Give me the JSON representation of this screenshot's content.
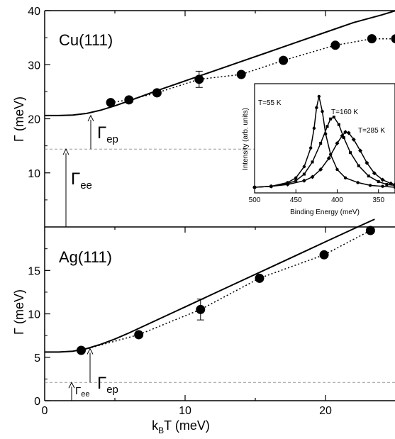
{
  "chart_data": [
    {
      "type": "scatter",
      "panel": "Cu(111)",
      "title": "Cu(111)",
      "ylabel": "Γ (meV)",
      "xlim": [
        0,
        25
      ],
      "ylim": [
        0,
        40
      ],
      "yticks": [
        10,
        20,
        30,
        40
      ],
      "measured": {
        "x": [
          4.7,
          6.0,
          8.0,
          11.0,
          14.0,
          17.0,
          20.7,
          23.3,
          25
        ],
        "y": [
          23.0,
          23.5,
          24.8,
          27.3,
          28.2,
          30.8,
          33.6,
          34.8,
          34.8
        ],
        "err": [
          0,
          0,
          0,
          1.5,
          0,
          0,
          0,
          0,
          0
        ]
      },
      "model": {
        "x": [
          0,
          1,
          2,
          3,
          4,
          5,
          6,
          8,
          10,
          12,
          14,
          16,
          18,
          20,
          22,
          24,
          25
        ],
        "y": [
          20.6,
          20.6,
          20.7,
          21.0,
          21.6,
          22.4,
          23.3,
          25.2,
          27.0,
          28.8,
          30.6,
          32.4,
          34.2,
          36.0,
          37.8,
          39.2,
          40.0
        ]
      },
      "gamma_ee_level": 14.4,
      "annotations": [
        {
          "label": "Γ",
          "sub": "ep"
        },
        {
          "label": "Γ",
          "sub": "ee"
        }
      ],
      "inset": {
        "type": "line",
        "xlabel": "Binding Energy (meV)",
        "ylabel": "Intensity (arb. units)",
        "xticks": [
          500,
          450,
          400,
          350
        ],
        "xlim": [
          500,
          330
        ],
        "series": [
          {
            "name": "T=55 K",
            "x": [
              500,
              480,
              460,
              450,
              440,
              432,
              428,
              425,
              422,
              418,
              414,
              408,
              400,
              390,
              375,
              360,
              345,
              330
            ],
            "y": [
              0.03,
              0.04,
              0.08,
              0.13,
              0.25,
              0.45,
              0.66,
              0.88,
              1.0,
              0.84,
              0.6,
              0.38,
              0.22,
              0.13,
              0.08,
              0.05,
              0.04,
              0.03
            ]
          },
          {
            "name": "T=160 K",
            "x": [
              500,
              480,
              460,
              450,
              440,
              430,
              420,
              412,
              408,
              404,
              398,
              392,
              384,
              374,
              362,
              350,
              340,
              330
            ],
            "y": [
              0.03,
              0.04,
              0.07,
              0.1,
              0.17,
              0.3,
              0.5,
              0.68,
              0.76,
              0.78,
              0.7,
              0.56,
              0.4,
              0.26,
              0.15,
              0.09,
              0.06,
              0.05
            ]
          },
          {
            "name": "T=285 K",
            "x": [
              500,
              480,
              460,
              440,
              430,
              420,
              410,
              400,
              394,
              390,
              386,
              380,
              372,
              364,
              355,
              345,
              335,
              330
            ],
            "y": [
              0.03,
              0.04,
              0.06,
              0.1,
              0.14,
              0.22,
              0.34,
              0.5,
              0.58,
              0.62,
              0.61,
              0.54,
              0.42,
              0.29,
              0.18,
              0.11,
              0.07,
              0.06
            ]
          }
        ]
      }
    },
    {
      "type": "scatter",
      "panel": "Ag(111)",
      "title": "Ag(111)",
      "xlabel": "k",
      "xlabel_sub": "B",
      "xlabel_rest": "T (meV)",
      "ylabel": "Γ (meV)",
      "xlim": [
        0,
        25
      ],
      "ylim": [
        0,
        20
      ],
      "xticks": [
        0,
        10,
        20
      ],
      "yticks": [
        0,
        5,
        10,
        15
      ],
      "measured": {
        "x": [
          2.6,
          6.7,
          11.1,
          15.3,
          19.9,
          23.2
        ],
        "y": [
          5.8,
          7.6,
          10.5,
          14.1,
          16.8,
          19.6
        ],
        "err": [
          0,
          0,
          1.2,
          0,
          0,
          0
        ]
      },
      "model": {
        "x": [
          0,
          1,
          2,
          3,
          4,
          5,
          6,
          8,
          10,
          12,
          14,
          16,
          18,
          20,
          22,
          23.5
        ],
        "y": [
          5.6,
          5.6,
          5.7,
          6.0,
          6.5,
          7.1,
          7.8,
          9.3,
          10.8,
          12.3,
          13.8,
          15.3,
          16.8,
          18.3,
          19.8,
          20.9
        ]
      },
      "gamma_ee_level": 2.1,
      "annotations": [
        {
          "label": "Γ",
          "sub": "ep"
        },
        {
          "label": "Γ",
          "sub": "ee"
        }
      ]
    }
  ]
}
